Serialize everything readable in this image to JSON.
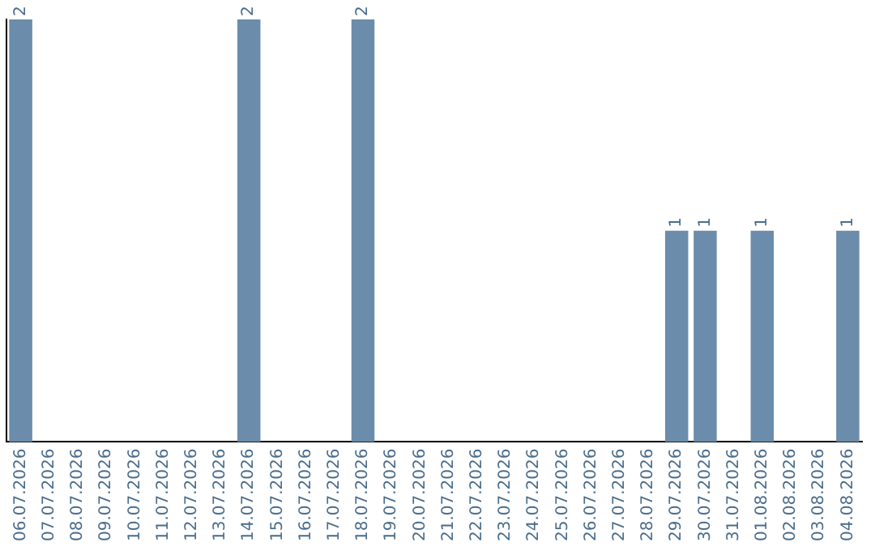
{
  "chart_data": {
    "type": "bar",
    "categories": [
      "06.07.2026",
      "07.07.2026",
      "08.07.2026",
      "09.07.2026",
      "10.07.2026",
      "11.07.2026",
      "12.07.2026",
      "13.07.2026",
      "14.07.2026",
      "15.07.2026",
      "16.07.2026",
      "17.07.2026",
      "18.07.2026",
      "19.07.2026",
      "20.07.2026",
      "21.07.2026",
      "22.07.2026",
      "23.07.2026",
      "24.07.2026",
      "25.07.2026",
      "26.07.2026",
      "27.07.2026",
      "28.07.2026",
      "29.07.2026",
      "30.07.2026",
      "31.07.2026",
      "01.08.2026",
      "02.08.2026",
      "03.08.2026",
      "04.08.2026"
    ],
    "values": [
      2,
      0,
      0,
      0,
      0,
      0,
      0,
      0,
      2,
      0,
      0,
      0,
      2,
      0,
      0,
      0,
      0,
      0,
      0,
      0,
      0,
      0,
      0,
      1,
      1,
      0,
      1,
      0,
      0,
      1
    ],
    "value_labels": [
      "2",
      null,
      null,
      null,
      null,
      null,
      null,
      null,
      "2",
      null,
      null,
      null,
      "2",
      null,
      null,
      null,
      null,
      null,
      null,
      null,
      null,
      null,
      null,
      "1",
      "1",
      null,
      "1",
      null,
      null,
      "1"
    ],
    "color": "#6b8cab",
    "ylim": [
      0,
      2
    ],
    "tick_labels": "x",
    "grid": false,
    "legend": false
  }
}
